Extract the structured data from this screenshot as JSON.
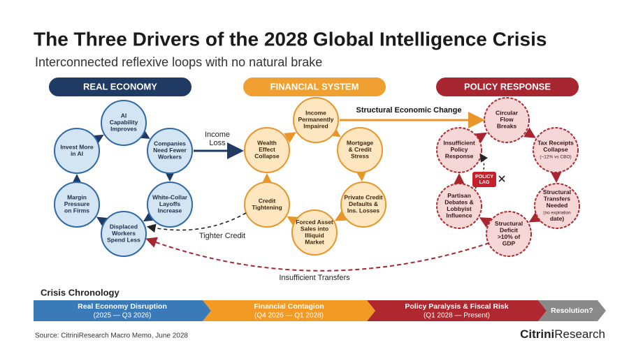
{
  "header": {
    "title": "The Three Drivers of the 2028 Global Intelligence Crisis",
    "subtitle": "Interconnected reflexive loops with no natural brake"
  },
  "sections": [
    {
      "label": "REAL ECONOMY",
      "nodes": [
        {
          "lines": [
            "AI",
            "Capability",
            "Improves"
          ]
        },
        {
          "lines": [
            "Companies",
            "Need Fewer",
            "Workers"
          ]
        },
        {
          "lines": [
            "White-Collar",
            "Layoffs",
            "Increase"
          ]
        },
        {
          "lines": [
            "Displaced",
            "Workers",
            "Spend Less"
          ]
        },
        {
          "lines": [
            "Margin",
            "Pressure",
            "on Firms"
          ]
        },
        {
          "lines": [
            "Invest More",
            "in AI"
          ]
        }
      ]
    },
    {
      "label": "FINANCIAL SYSTEM",
      "nodes": [
        {
          "lines": [
            "Income",
            "Permanently",
            "Impaired"
          ]
        },
        {
          "lines": [
            "Mortgage",
            "& Credit",
            "Stress"
          ]
        },
        {
          "lines": [
            "Private Credit",
            "Defaults &",
            "Ins. Losses"
          ]
        },
        {
          "lines": [
            "Forced Asset",
            "Sales into",
            "Illiquid",
            "Market"
          ]
        },
        {
          "lines": [
            "Credit",
            "Tightening"
          ]
        },
        {
          "lines": [
            "Wealth",
            "Effect",
            "Collapse"
          ]
        }
      ]
    },
    {
      "label": "POLICY RESPONSE",
      "nodes": [
        {
          "lines": [
            "Circular",
            "Flow",
            "Breaks"
          ]
        },
        {
          "lines": [
            "Tax Receipts",
            "Collapse",
            "(~12% vs CBO)"
          ]
        },
        {
          "lines": [
            "Structural",
            "Transfers",
            "Needed",
            "(no expiration",
            "date)"
          ]
        },
        {
          "lines": [
            "Structural",
            "Deficit",
            ">10% of",
            "GDP"
          ]
        },
        {
          "lines": [
            "Partisan",
            "Debates &",
            "Lobbyist",
            "Influence"
          ]
        },
        {
          "lines": [
            "Insufficient",
            "Policy",
            "Response"
          ]
        }
      ]
    }
  ],
  "links": [
    {
      "lines": [
        "Income",
        "Loss"
      ]
    },
    {
      "lines": [
        "Tighter Credit"
      ]
    },
    {
      "lines": [
        "Structural Economic Change"
      ]
    },
    {
      "lines": [
        "Insufficient Transfers"
      ]
    },
    {
      "lines": [
        "POLICY",
        "LAG"
      ]
    }
  ],
  "chronology": {
    "title": "Crisis Chronology",
    "phases": [
      {
        "label": "Real Economy Disruption",
        "period": "(2025 — Q3 2026)"
      },
      {
        "label": "Financial Contagion",
        "period": "(Q4 2026 — Q1 2028)"
      },
      {
        "label": "Policy Paralysis & Fiscal Risk",
        "period": "(Q1 2028 — Present)"
      },
      {
        "label": "Resolution?"
      }
    ]
  },
  "footer": {
    "source": "Source: CitriniResearch Macro Memo, June 2028",
    "brand_bold": "Citrini",
    "brand": "Research"
  }
}
